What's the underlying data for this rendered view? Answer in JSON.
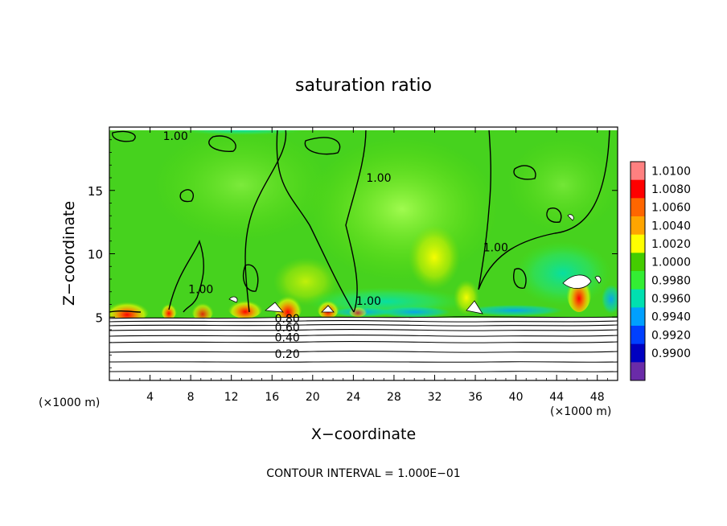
{
  "chart_data": {
    "type": "heatmap",
    "title": "saturation ratio",
    "xlabel": "X−coordinate",
    "ylabel": "Z−coordinate",
    "x_unit_left": "(×1000 m)",
    "x_unit_right": "(×1000 m)",
    "xlim": [
      0,
      50
    ],
    "ylim": [
      0,
      20
    ],
    "x_ticks": [
      4,
      8,
      12,
      16,
      20,
      24,
      28,
      32,
      36,
      40,
      44,
      48
    ],
    "y_ticks": [
      5,
      10,
      15
    ],
    "colorbar": {
      "levels": [
        1.01,
        1.008,
        1.006,
        1.004,
        1.002,
        1.0,
        0.998,
        0.996,
        0.994,
        0.992,
        0.99
      ],
      "labels": [
        "1.0100",
        "1.0080",
        "1.0060",
        "1.0040",
        "1.0020",
        "1.0000",
        "0.9980",
        "0.9960",
        "0.9940",
        "0.9920",
        "0.9900"
      ],
      "colors": [
        "#ff8080",
        "#ff0000",
        "#ff6600",
        "#ffa500",
        "#ffff00",
        "#44cc00",
        "#33ee33",
        "#00e0b0",
        "#00a0ff",
        "#0040ff",
        "#0000c0",
        "#6a2ba8"
      ]
    },
    "contour_labels": [
      {
        "text": "1.00",
        "x": 6.5,
        "y": 19.3
      },
      {
        "text": "1.00",
        "x": 26.5,
        "y": 16.0
      },
      {
        "text": "1.00",
        "x": 38.0,
        "y": 10.5
      },
      {
        "text": "1.00",
        "x": 9.0,
        "y": 7.2
      },
      {
        "text": "1.00",
        "x": 25.5,
        "y": 6.3
      },
      {
        "text": "0.80",
        "x": 17.5,
        "y": 4.9
      },
      {
        "text": "0.60",
        "x": 17.5,
        "y": 4.2
      },
      {
        "text": "0.40",
        "x": 17.5,
        "y": 3.4
      },
      {
        "text": "0.20",
        "x": 17.5,
        "y": 2.1
      }
    ],
    "footer": "CONTOUR INTERVAL =  1.000E−01"
  }
}
